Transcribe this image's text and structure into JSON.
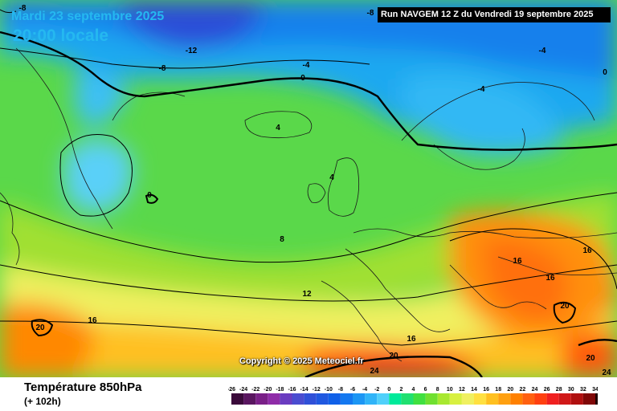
{
  "header": {
    "date": "Mardi 23 septembre 2025",
    "local_time": "20:00 locale",
    "run_info": "Run NAVGEM 12 Z du Vendredi 19 septembre 2025"
  },
  "copyright": "Copyright © 2025 Meteociel.fr",
  "legend": {
    "title": "Température 850hPa",
    "subtitle": "(+ 102h)",
    "ticks": [
      "-26",
      "-24",
      "-22",
      "-20",
      "-18",
      "-16",
      "-14",
      "-12",
      "-10",
      "-8",
      "-6",
      "-4",
      "-2",
      "0",
      "2",
      "4",
      "6",
      "8",
      "10",
      "12",
      "14",
      "16",
      "18",
      "20",
      "22",
      "24",
      "26",
      "28",
      "30",
      "32",
      "34"
    ],
    "colors": [
      "#3a0a3a",
      "#5a1660",
      "#7a2088",
      "#8f2ca8",
      "#6a3cc0",
      "#4a4cd0",
      "#3050d8",
      "#2058e0",
      "#1060e8",
      "#1478f0",
      "#1c96f4",
      "#30b4f8",
      "#50d0fa",
      "#00ea9a",
      "#20e070",
      "#40e040",
      "#70e030",
      "#a8e830",
      "#d8f040",
      "#f0f060",
      "#ffe040",
      "#ffc020",
      "#ffa010",
      "#ff8000",
      "#ff6010",
      "#ff4010",
      "#f02020",
      "#d01818",
      "#b01010",
      "#800808",
      "#200000"
    ]
  },
  "contour_labels": [
    {
      "text": "-8",
      "id": "m8a"
    },
    {
      "text": "-8",
      "id": "m8b"
    },
    {
      "text": "-8",
      "id": "m8c"
    },
    {
      "text": "-12",
      "id": "m12"
    },
    {
      "text": "-4",
      "id": "m4a"
    },
    {
      "text": "-4",
      "id": "m4b"
    },
    {
      "text": "-4",
      "id": "m4c"
    },
    {
      "text": "0",
      "id": "z0a"
    },
    {
      "text": "0",
      "id": "z0b"
    },
    {
      "text": "0",
      "id": "z0c"
    },
    {
      "text": "4",
      "id": "p4a"
    },
    {
      "text": "4",
      "id": "p4b"
    },
    {
      "text": "8",
      "id": "p8"
    },
    {
      "text": "12",
      "id": "p12"
    },
    {
      "text": "16",
      "id": "p16a"
    },
    {
      "text": "16",
      "id": "p16b"
    },
    {
      "text": "16",
      "id": "p16c"
    },
    {
      "text": "16",
      "id": "p16d"
    },
    {
      "text": "16",
      "id": "p16e"
    },
    {
      "text": "20",
      "id": "p20a"
    },
    {
      "text": "20",
      "id": "p20b"
    },
    {
      "text": "20",
      "id": "p20c"
    },
    {
      "text": "20",
      "id": "p20d"
    },
    {
      "text": "24",
      "id": "p24a"
    },
    {
      "text": "24",
      "id": "p24b"
    }
  ]
}
